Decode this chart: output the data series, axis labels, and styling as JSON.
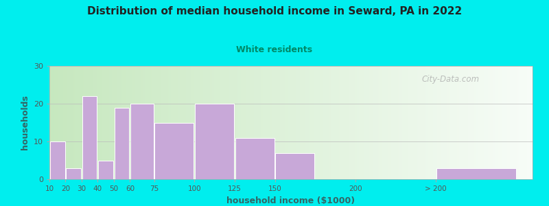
{
  "title": "Distribution of median household income in Seward, PA in 2022",
  "subtitle": "White residents",
  "xlabel": "household income ($1000)",
  "ylabel": "households",
  "background_outer": "#00EEEE",
  "bar_color": "#C8A8D8",
  "bar_edge_color": "#FFFFFF",
  "title_color": "#222222",
  "subtitle_color": "#008866",
  "axis_label_color": "#336666",
  "tick_label_color": "#555555",
  "plot_bg_left": "#C8E8C0",
  "plot_bg_right": "#F8F8FF",
  "values": [
    10,
    3,
    22,
    5,
    19,
    20,
    15,
    20,
    11,
    7,
    0,
    3
  ],
  "bar_widths": [
    10,
    10,
    10,
    10,
    10,
    15,
    25,
    25,
    25,
    25,
    50,
    50
  ],
  "bar_lefts": [
    10,
    20,
    30,
    40,
    50,
    60,
    75,
    100,
    125,
    150,
    200,
    250
  ],
  "xlim": [
    10,
    310
  ],
  "ylim": [
    0,
    30
  ],
  "yticks": [
    0,
    10,
    20,
    30
  ],
  "xtick_positions": [
    10,
    20,
    30,
    40,
    50,
    60,
    75,
    100,
    125,
    150,
    200,
    250
  ],
  "xtick_labels": [
    "10",
    "20",
    "30",
    "40",
    "50",
    "60",
    "75",
    "100",
    "125",
    "150",
    "200",
    "> 200"
  ],
  "watermark": "City-Data.com"
}
